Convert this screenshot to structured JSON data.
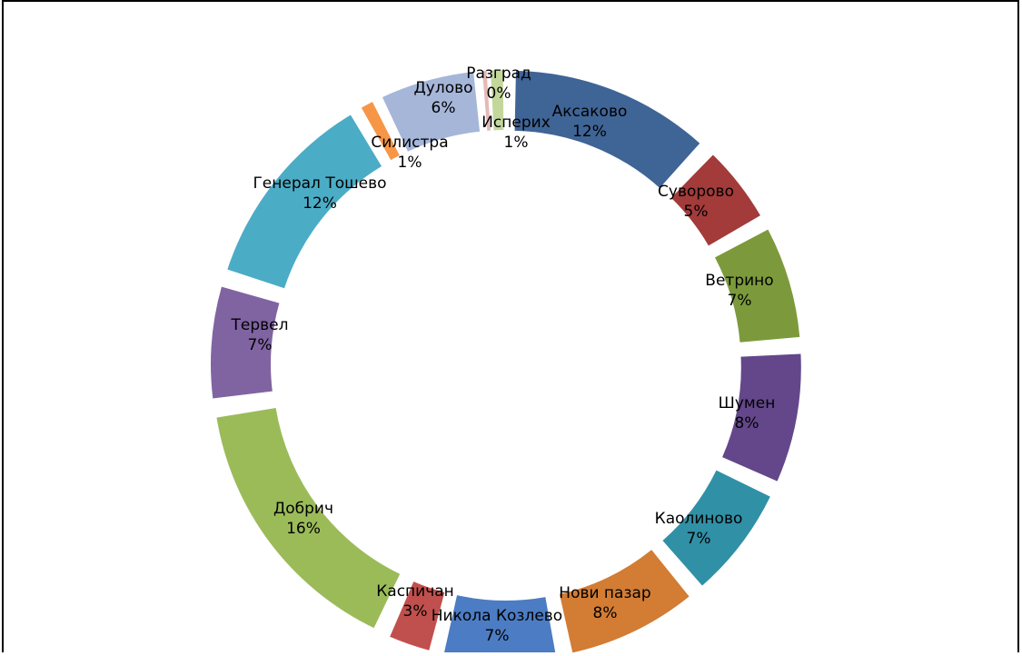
{
  "chart_data": {
    "type": "doughnut",
    "title": "",
    "slices": [
      {
        "name": "Аксаково",
        "value": 12,
        "label": "12%",
        "color": "#3F6496"
      },
      {
        "name": "Суворово",
        "value": 5,
        "label": "5%",
        "color": "#A23B3A"
      },
      {
        "name": "Ветрино",
        "value": 7,
        "label": "7%",
        "color": "#7C9A3C"
      },
      {
        "name": "Шумен",
        "value": 8,
        "label": "8%",
        "color": "#63478A"
      },
      {
        "name": "Каолиново",
        "value": 7,
        "label": "7%",
        "color": "#3090A6"
      },
      {
        "name": "Нови пазар",
        "value": 8,
        "label": "8%",
        "color": "#D27C34"
      },
      {
        "name": "Никола Козлево",
        "value": 7,
        "label": "7%",
        "color": "#4C7CC3"
      },
      {
        "name": "Каспичан",
        "value": 3,
        "label": "3%",
        "color": "#C0504D"
      },
      {
        "name": "Добрич",
        "value": 16,
        "label": "16%",
        "color": "#9BBB59"
      },
      {
        "name": "Тервел",
        "value": 7,
        "label": "7%",
        "color": "#8064A2"
      },
      {
        "name": "Генерал Тошево",
        "value": 12,
        "label": "12%",
        "color": "#4BACC6"
      },
      {
        "name": "Силистра",
        "value": 1,
        "label": "1%",
        "color": "#F79646"
      },
      {
        "name": "Дулово",
        "value": 6,
        "label": "6%",
        "color": "#A5B6D9"
      },
      {
        "name": "Разград",
        "value": 0,
        "label": "0%",
        "color": "#E6B9B8"
      },
      {
        "name": "Исперих",
        "value": 1,
        "label": "1%",
        "color": "#C4D79B"
      }
    ],
    "legend": "none",
    "data_labels": "category and percentage"
  }
}
